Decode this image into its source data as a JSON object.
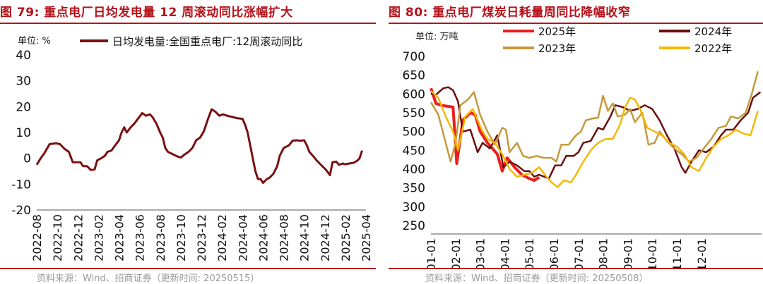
{
  "figures": [
    {
      "title": "图 79:  重点电厂日均发电量 12 周滚动同比涨幅扩大",
      "source": "资料来源：Wind、招商证券（更新时间: 20250515）"
    },
    {
      "title": "图 80:  重点电厂煤炭日耗量周同比降幅收窄",
      "source": "资料来源：Wind、招商证券（更新时间: 20250508）"
    }
  ],
  "chart_data": [
    {
      "type": "line",
      "unit_label": "单位:  %",
      "ylim": [
        -20,
        40
      ],
      "yticks": [
        -20,
        -10,
        0,
        10,
        20,
        30,
        40
      ],
      "xticks": [
        "2022-08",
        "2022-10",
        "2022-12",
        "2023-02",
        "2023-04",
        "2023-06",
        "2023-08",
        "2023-10",
        "2023-12",
        "2024-02",
        "2024-04",
        "2024-06",
        "2024-08",
        "2024-10",
        "2024-12",
        "2025-02",
        "2025-04"
      ],
      "legend_position": "top",
      "grid": false,
      "colors": {
        "main": "#7a1010"
      },
      "series": [
        {
          "name": "日均发电量:全国重点电厂:12周滚动同比",
          "values": [
            [
              0,
              -2.5
            ],
            [
              0.3,
              0
            ],
            [
              0.6,
              2
            ],
            [
              1.0,
              5.5
            ],
            [
              1.5,
              5.8
            ],
            [
              1.8,
              5.5
            ],
            [
              2.2,
              3.5
            ],
            [
              2.5,
              2.5
            ],
            [
              2.8,
              -1.5
            ],
            [
              3.1,
              -1.5
            ],
            [
              3.4,
              -1.5
            ],
            [
              3.6,
              -3
            ],
            [
              3.9,
              -3
            ],
            [
              4.2,
              -4.5
            ],
            [
              4.5,
              -4.3
            ],
            [
              4.7,
              -0.8
            ],
            [
              5.0,
              0
            ],
            [
              5.3,
              1
            ],
            [
              5.5,
              2.5
            ],
            [
              5.8,
              3
            ],
            [
              6.1,
              5
            ],
            [
              6.4,
              7
            ],
            [
              6.6,
              10
            ],
            [
              6.8,
              12
            ],
            [
              7.0,
              10
            ],
            [
              7.3,
              12
            ],
            [
              7.6,
              13.5
            ],
            [
              7.9,
              15.5
            ],
            [
              8.2,
              17.5
            ],
            [
              8.5,
              16.5
            ],
            [
              8.8,
              17
            ],
            [
              9.0,
              16
            ],
            [
              9.3,
              13.5
            ],
            [
              9.6,
              10
            ],
            [
              9.8,
              8
            ],
            [
              10.0,
              4
            ],
            [
              10.2,
              2.5
            ],
            [
              10.5,
              1.8
            ],
            [
              10.9,
              0.8
            ],
            [
              11.2,
              0.3
            ],
            [
              11.5,
              1.5
            ],
            [
              11.8,
              2.5
            ],
            [
              12.1,
              4
            ],
            [
              12.4,
              7
            ],
            [
              12.7,
              8
            ],
            [
              13.0,
              10.5
            ],
            [
              13.3,
              15
            ],
            [
              13.6,
              19
            ],
            [
              13.9,
              18
            ],
            [
              14.2,
              16.5
            ],
            [
              14.5,
              17
            ],
            [
              14.8,
              16.5
            ],
            [
              15.2,
              16
            ],
            [
              15.6,
              15.5
            ],
            [
              16.0,
              15.3
            ],
            [
              16.2,
              13
            ],
            [
              16.4,
              10
            ],
            [
              16.6,
              5
            ],
            [
              16.8,
              0
            ],
            [
              17.0,
              -5
            ],
            [
              17.2,
              -8
            ],
            [
              17.4,
              -8
            ],
            [
              17.6,
              -9.5
            ],
            [
              17.9,
              -8
            ],
            [
              18.1,
              -7.5
            ],
            [
              18.4,
              -6
            ],
            [
              18.7,
              -3
            ],
            [
              18.9,
              1
            ],
            [
              19.2,
              4
            ],
            [
              19.4,
              4.5
            ],
            [
              19.6,
              5
            ],
            [
              19.9,
              6.8
            ],
            [
              20.2,
              7
            ],
            [
              20.5,
              6.8
            ],
            [
              20.8,
              7
            ],
            [
              21.0,
              5
            ],
            [
              21.2,
              2.5
            ],
            [
              21.5,
              0.8
            ],
            [
              21.8,
              -1
            ],
            [
              22.0,
              -2
            ],
            [
              22.3,
              -3.5
            ],
            [
              22.5,
              -4.5
            ],
            [
              22.8,
              -6.5
            ],
            [
              23.0,
              -1.5
            ],
            [
              23.3,
              -1.3
            ],
            [
              23.5,
              -2.5
            ],
            [
              23.8,
              -2
            ],
            [
              24.0,
              -2.3
            ],
            [
              24.3,
              -2
            ],
            [
              24.6,
              -1.8
            ],
            [
              24.9,
              -1
            ],
            [
              25.1,
              0
            ],
            [
              25.3,
              3
            ]
          ]
        }
      ]
    },
    {
      "type": "line",
      "unit_label": "单位:  万吨",
      "ylim": [
        250,
        700
      ],
      "yticks": [
        250,
        300,
        350,
        400,
        450,
        500,
        550,
        600,
        650,
        700
      ],
      "xticks": [
        "01-01",
        "02-01",
        "03-01",
        "04-01",
        "05-01",
        "06-01",
        "07-01",
        "08-01",
        "09-01",
        "10-01",
        "11-01",
        "12-01"
      ],
      "legend_position": "top",
      "grid": false,
      "series": [
        {
          "name": "2025年",
          "color": "#ee1c1c",
          "values": [
            [
              0.0,
              615
            ],
            [
              0.2,
              575
            ],
            [
              0.4,
              570
            ],
            [
              0.6,
              568
            ],
            [
              0.9,
              565
            ],
            [
              1.05,
              415
            ],
            [
              1.3,
              530
            ],
            [
              1.6,
              550
            ],
            [
              1.8,
              545
            ],
            [
              2.0,
              500
            ],
            [
              2.3,
              470
            ],
            [
              2.5,
              455
            ],
            [
              2.7,
              440
            ],
            [
              2.9,
              395
            ],
            [
              3.1,
              430
            ],
            [
              3.4,
              405
            ],
            [
              3.7,
              385
            ],
            [
              4.0,
              375
            ],
            [
              4.2,
              370
            ],
            [
              4.4,
              378
            ]
          ]
        },
        {
          "name": "2024年",
          "color": "#6b0f0f",
          "values": [
            [
              0.0,
              600
            ],
            [
              0.2,
              598
            ],
            [
              0.5,
              615
            ],
            [
              0.7,
              618
            ],
            [
              0.9,
              610
            ],
            [
              1.1,
              580
            ],
            [
              1.3,
              500
            ],
            [
              1.6,
              505
            ],
            [
              1.9,
              445
            ],
            [
              2.1,
              470
            ],
            [
              2.4,
              455
            ],
            [
              2.7,
              490
            ],
            [
              2.95,
              405
            ],
            [
              3.2,
              420
            ],
            [
              3.5,
              410
            ],
            [
              3.8,
              395
            ],
            [
              4.0,
              395
            ],
            [
              4.2,
              380
            ],
            [
              4.4,
              385
            ],
            [
              4.6,
              380
            ],
            [
              4.8,
              375
            ],
            [
              5.05,
              410
            ],
            [
              5.3,
              410
            ],
            [
              5.5,
              435
            ],
            [
              5.8,
              435
            ],
            [
              6.0,
              445
            ],
            [
              6.2,
              470
            ],
            [
              6.5,
              475
            ],
            [
              6.8,
              510
            ],
            [
              7.0,
              505
            ],
            [
              7.3,
              540
            ],
            [
              7.5,
              570
            ],
            [
              7.8,
              565
            ],
            [
              8.1,
              555
            ],
            [
              8.4,
              560
            ],
            [
              8.7,
              570
            ],
            [
              9.0,
              560
            ],
            [
              9.3,
              530
            ],
            [
              9.6,
              490
            ],
            [
              9.9,
              455
            ],
            [
              10.2,
              405
            ],
            [
              10.35,
              390
            ],
            [
              10.6,
              420
            ],
            [
              10.9,
              450
            ],
            [
              11.2,
              445
            ],
            [
              11.5,
              460
            ],
            [
              11.8,
              490
            ],
            [
              12.0,
              505
            ],
            [
              12.3,
              505
            ],
            [
              12.6,
              530
            ],
            [
              12.9,
              550
            ],
            [
              13.1,
              590
            ],
            [
              13.4,
              605
            ]
          ]
        },
        {
          "name": "2023年",
          "color": "#c49a3c",
          "values": [
            [
              0.0,
              578
            ],
            [
              0.3,
              545
            ],
            [
              0.6,
              470
            ],
            [
              0.8,
              420
            ],
            [
              1.0,
              470
            ],
            [
              1.2,
              570
            ],
            [
              1.5,
              585
            ],
            [
              1.75,
              605
            ],
            [
              2.0,
              545
            ],
            [
              2.3,
              500
            ],
            [
              2.6,
              465
            ],
            [
              2.9,
              510
            ],
            [
              3.05,
              505
            ],
            [
              3.2,
              445
            ],
            [
              3.5,
              470
            ],
            [
              3.75,
              435
            ],
            [
              4.0,
              430
            ],
            [
              4.3,
              435
            ],
            [
              4.6,
              430
            ],
            [
              4.9,
              430
            ],
            [
              5.1,
              420
            ],
            [
              5.3,
              465
            ],
            [
              5.6,
              465
            ],
            [
              5.9,
              490
            ],
            [
              6.1,
              500
            ],
            [
              6.3,
              530
            ],
            [
              6.6,
              535
            ],
            [
              6.8,
              537
            ],
            [
              7.0,
              595
            ],
            [
              7.2,
              555
            ],
            [
              7.4,
              575
            ],
            [
              7.6,
              540
            ],
            [
              7.9,
              545
            ],
            [
              8.1,
              560
            ],
            [
              8.3,
              525
            ],
            [
              8.6,
              550
            ],
            [
              8.85,
              465
            ],
            [
              9.1,
              470
            ],
            [
              9.3,
              500
            ],
            [
              9.6,
              475
            ],
            [
              9.9,
              455
            ],
            [
              10.2,
              440
            ],
            [
              10.5,
              420
            ],
            [
              10.8,
              430
            ],
            [
              11.1,
              455
            ],
            [
              11.4,
              480
            ],
            [
              11.7,
              510
            ],
            [
              12.0,
              515
            ],
            [
              12.2,
              540
            ],
            [
              12.5,
              535
            ],
            [
              12.8,
              550
            ],
            [
              13.05,
              600
            ],
            [
              13.3,
              660
            ]
          ]
        },
        {
          "name": "2022年",
          "color": "#f5b800",
          "values": [
            [
              0.0,
              608
            ],
            [
              0.3,
              590
            ],
            [
              0.6,
              540
            ],
            [
              0.9,
              500
            ],
            [
              1.1,
              450
            ],
            [
              1.4,
              540
            ],
            [
              1.7,
              560
            ],
            [
              1.9,
              530
            ],
            [
              2.1,
              500
            ],
            [
              2.3,
              480
            ],
            [
              2.6,
              470
            ],
            [
              2.9,
              440
            ],
            [
              3.2,
              400
            ],
            [
              3.5,
              380
            ],
            [
              3.8,
              385
            ],
            [
              4.1,
              390
            ],
            [
              4.4,
              405
            ],
            [
              4.7,
              380
            ],
            [
              4.9,
              365
            ],
            [
              5.15,
              352
            ],
            [
              5.4,
              370
            ],
            [
              5.7,
              365
            ],
            [
              5.9,
              385
            ],
            [
              6.2,
              420
            ],
            [
              6.5,
              450
            ],
            [
              6.8,
              470
            ],
            [
              7.1,
              480
            ],
            [
              7.4,
              480
            ],
            [
              7.7,
              520
            ],
            [
              7.9,
              565
            ],
            [
              8.1,
              590
            ],
            [
              8.3,
              585
            ],
            [
              8.5,
              560
            ],
            [
              8.8,
              510
            ],
            [
              9.1,
              500
            ],
            [
              9.4,
              490
            ],
            [
              9.7,
              470
            ],
            [
              10.0,
              460
            ],
            [
              10.3,
              440
            ],
            [
              10.6,
              405
            ],
            [
              10.9,
              395
            ],
            [
              11.2,
              430
            ],
            [
              11.5,
              460
            ],
            [
              11.8,
              480
            ],
            [
              12.1,
              490
            ],
            [
              12.4,
              505
            ],
            [
              12.7,
              495
            ],
            [
              13.0,
              490
            ],
            [
              13.3,
              555
            ]
          ]
        }
      ]
    }
  ]
}
